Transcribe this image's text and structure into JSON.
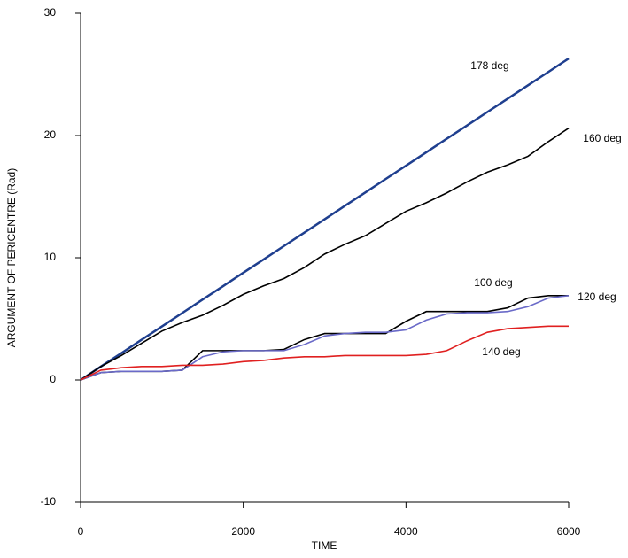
{
  "chart_data": {
    "type": "line",
    "xlabel": "TIME",
    "ylabel": "ARGUMENT OF PERICENTRE (Rad)",
    "x": [
      0,
      250,
      500,
      750,
      1000,
      1250,
      1500,
      1750,
      2000,
      2250,
      2500,
      2750,
      3000,
      3250,
      3500,
      3750,
      4000,
      4250,
      4500,
      4750,
      5000,
      5250,
      5500,
      5750,
      6000
    ],
    "series": [
      {
        "name": "178 deg",
        "color": "#1f3f8f",
        "values": [
          0,
          1.1,
          2.19,
          3.29,
          4.38,
          5.48,
          6.58,
          7.67,
          8.77,
          9.86,
          10.96,
          12.05,
          13.15,
          14.25,
          15.34,
          16.44,
          17.53,
          18.63,
          19.73,
          20.82,
          21.92,
          23.01,
          24.11,
          25.2,
          26.3
        ]
      },
      {
        "name": "160 deg",
        "color": "#000000",
        "values": [
          0,
          1.1,
          2.0,
          3.0,
          4.0,
          4.7,
          5.3,
          6.1,
          7.0,
          7.7,
          8.3,
          9.2,
          10.3,
          11.1,
          11.8,
          12.8,
          13.8,
          14.5,
          15.3,
          16.2,
          17.0,
          17.6,
          18.3,
          19.5,
          20.6
        ]
      },
      {
        "name": "100 deg",
        "color": "#000000",
        "values": [
          0,
          0.6,
          0.7,
          0.7,
          0.7,
          0.8,
          2.4,
          2.4,
          2.4,
          2.4,
          2.5,
          3.3,
          3.8,
          3.8,
          3.8,
          3.8,
          4.8,
          5.6,
          5.6,
          5.6,
          5.6,
          5.9,
          6.7,
          6.9,
          6.9
        ]
      },
      {
        "name": "120 deg",
        "color": "#6a6ac8",
        "values": [
          0,
          0.6,
          0.7,
          0.7,
          0.7,
          0.8,
          1.9,
          2.3,
          2.4,
          2.4,
          2.4,
          2.9,
          3.6,
          3.8,
          3.9,
          3.9,
          4.1,
          4.9,
          5.4,
          5.5,
          5.5,
          5.6,
          6.0,
          6.7,
          6.9
        ]
      },
      {
        "name": "140 deg",
        "color": "#e02020",
        "values": [
          0,
          0.8,
          1.0,
          1.1,
          1.1,
          1.2,
          1.2,
          1.3,
          1.5,
          1.6,
          1.8,
          1.9,
          1.9,
          2.0,
          2.0,
          2.0,
          2.0,
          2.1,
          2.4,
          3.2,
          3.9,
          4.2,
          4.3,
          4.4,
          4.4
        ]
      }
    ],
    "xlim": [
      0,
      6000
    ],
    "xticks": [
      0,
      2000,
      4000,
      6000
    ],
    "ylim": [
      -10,
      30
    ],
    "yticks": [
      -10,
      0,
      10,
      20,
      30
    ],
    "grid": false
  }
}
